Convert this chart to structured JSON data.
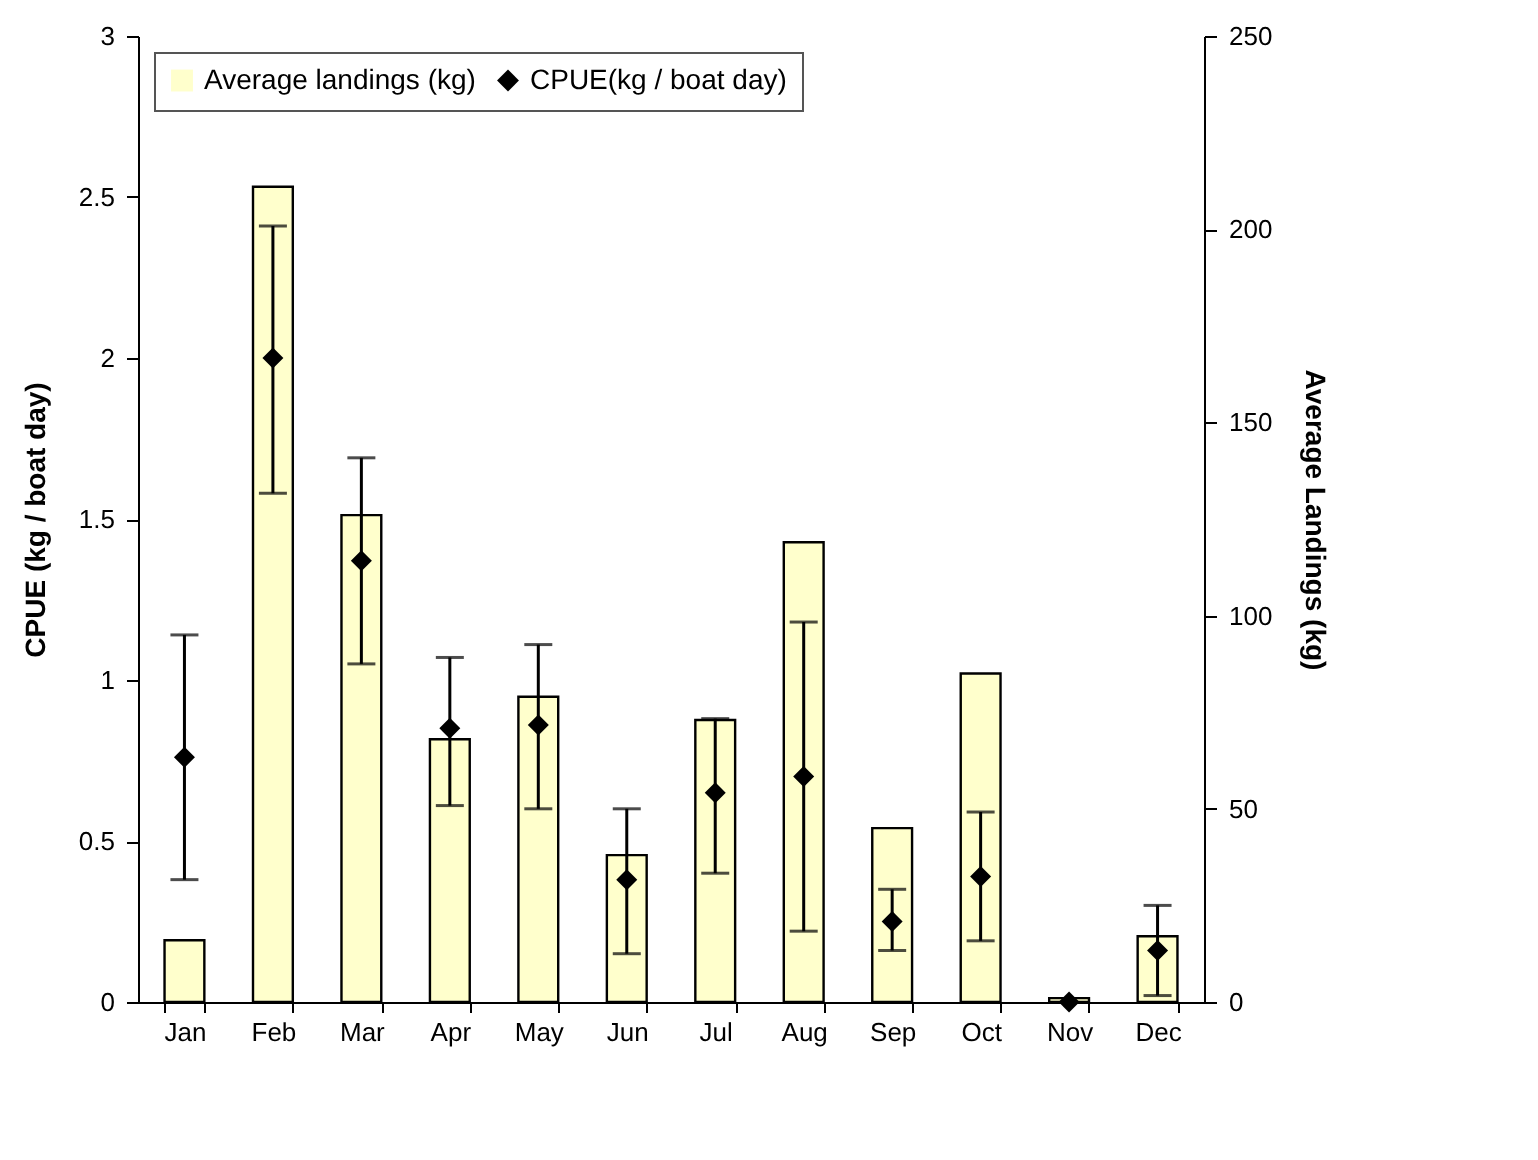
{
  "chart_data": {
    "type": "bar",
    "ylabel": "CPUE (kg / boat day)",
    "y2label": "Average Landings (kg)",
    "categories": [
      "Jan",
      "Feb",
      "Mar",
      "Apr",
      "May",
      "Jun",
      "Jul",
      "Aug",
      "Sep",
      "Oct",
      "Nov",
      "Dec"
    ],
    "series": [
      {
        "name": "Average landings (kg)",
        "axis": "y2",
        "color": "#ffffcc",
        "values": [
          16,
          211,
          126,
          68,
          79,
          38,
          73,
          119,
          45,
          85,
          1,
          17
        ]
      },
      {
        "name": "CPUE(kg / boat day)",
        "type": "scatter",
        "color": "#000000",
        "values": [
          0.76,
          2.0,
          1.37,
          0.85,
          0.86,
          0.38,
          0.65,
          0.7,
          0.25,
          0.39,
          0,
          0.16
        ],
        "errors": [
          [
            0.38,
            1.14
          ],
          [
            1.58,
            2.41
          ],
          [
            1.05,
            1.69
          ],
          [
            0.61,
            1.07
          ],
          [
            0.6,
            1.11
          ],
          [
            0.15,
            0.6
          ],
          [
            0.4,
            0.88
          ],
          [
            0.22,
            1.18
          ],
          [
            0.16,
            0.35
          ],
          [
            0.19,
            0.59
          ],
          null,
          [
            0.02,
            0.3
          ]
        ]
      }
    ],
    "marker": "diamond",
    "legend": "top left",
    "ylim": [
      0,
      3
    ],
    "yticks": [
      0,
      0.5,
      1,
      1.5,
      2,
      2.5,
      3
    ],
    "y2lim": [
      0,
      250
    ],
    "y2ticks": [
      0,
      50,
      100,
      150,
      200,
      250
    ]
  }
}
